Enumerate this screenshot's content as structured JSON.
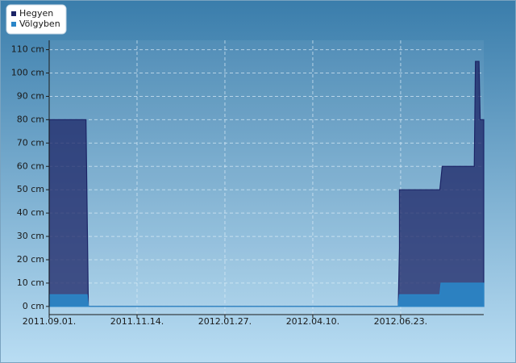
{
  "chart_data": {
    "type": "area",
    "series": [
      {
        "name": "Hegyen",
        "color": "#1c2466",
        "x": [
          "2011-09-01",
          "2011-10-02",
          "2011-10-03",
          "2011-10-04",
          "2012-06-21",
          "2012-06-22",
          "2012-06-22",
          "2012-07-26",
          "2012-07-27",
          "2012-07-28",
          "2012-08-24",
          "2012-08-25",
          "2012-08-28",
          "2012-08-29",
          "2012-09-01"
        ],
        "values": [
          80,
          80,
          40,
          0,
          0,
          25,
          50,
          50,
          55,
          60,
          60,
          105,
          105,
          80,
          80
        ]
      },
      {
        "name": "Völgyben",
        "color": "#2a86c8",
        "x": [
          "2011-09-01",
          "2011-10-03",
          "2011-10-04",
          "2012-06-21",
          "2012-06-22",
          "2012-07-26",
          "2012-07-27",
          "2012-09-01"
        ],
        "values": [
          5,
          5,
          0,
          0,
          5,
          5,
          10,
          10
        ]
      }
    ],
    "xlim": [
      "2011-09-01",
      "2012-09-01"
    ],
    "xticks": [
      {
        "value": "2011-09-01",
        "label": "2011.09.01."
      },
      {
        "value": "2011-11-14",
        "label": "2011.11.14."
      },
      {
        "value": "2012-01-27",
        "label": "2012.01.27."
      },
      {
        "value": "2012-04-10",
        "label": "2012.04.10."
      },
      {
        "value": "2012-06-23",
        "label": "2012.06.23."
      }
    ],
    "ylim": [
      -3.5,
      114
    ],
    "yticks": [
      {
        "value": 0,
        "label": "0 cm"
      },
      {
        "value": 10,
        "label": "10 cm"
      },
      {
        "value": 20,
        "label": "20 cm"
      },
      {
        "value": 30,
        "label": "30 cm"
      },
      {
        "value": 40,
        "label": "40 cm"
      },
      {
        "value": 50,
        "label": "50 cm"
      },
      {
        "value": 60,
        "label": "60 cm"
      },
      {
        "value": 70,
        "label": "70 cm"
      },
      {
        "value": 80,
        "label": "80 cm"
      },
      {
        "value": 90,
        "label": "90 cm"
      },
      {
        "value": 100,
        "label": "100 cm"
      },
      {
        "value": 110,
        "label": "110 cm"
      }
    ],
    "grid": true,
    "legend": "top-left"
  }
}
